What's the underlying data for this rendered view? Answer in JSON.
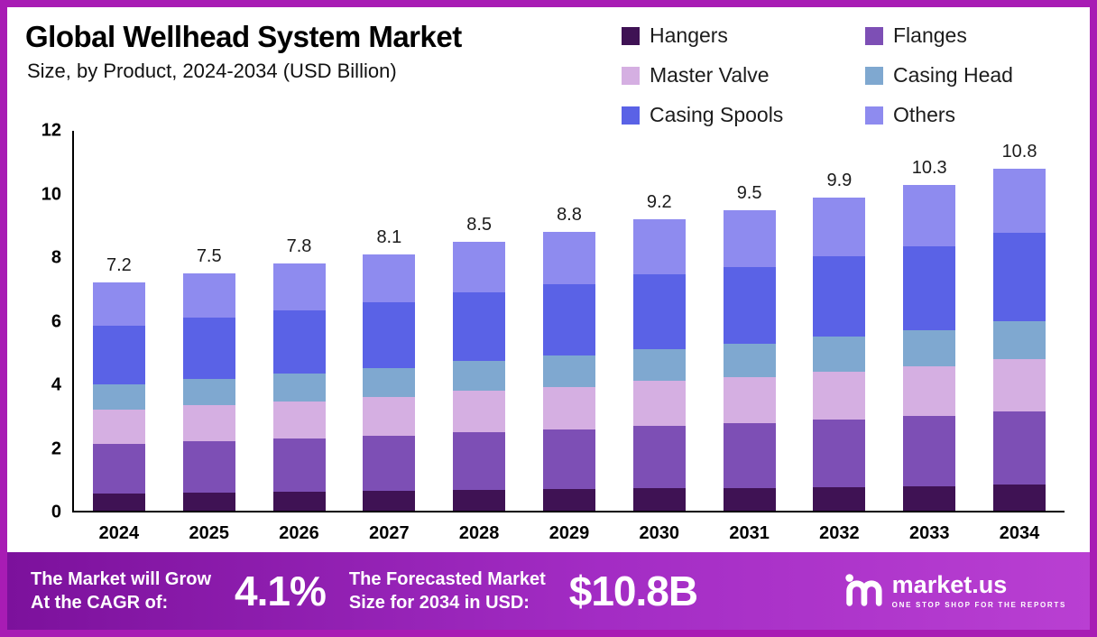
{
  "page": {
    "title": "Global Wellhead System Market",
    "subtitle": "Size, by Product, 2024-2034 (USD Billion)"
  },
  "chart_data": {
    "type": "bar",
    "stacked": true,
    "title": "Global Wellhead System Market Size, by Product, 2024-2034 (USD Billion)",
    "categories": [
      "2024",
      "2025",
      "2026",
      "2027",
      "2028",
      "2029",
      "2030",
      "2031",
      "2032",
      "2033",
      "2034"
    ],
    "totals": [
      7.2,
      7.5,
      7.8,
      8.1,
      8.5,
      8.8,
      9.2,
      9.5,
      9.9,
      10.3,
      10.8
    ],
    "series": [
      {
        "name": "Hangers",
        "color": "#3f1254",
        "values": [
          0.55,
          0.57,
          0.59,
          0.62,
          0.65,
          0.67,
          0.7,
          0.72,
          0.75,
          0.78,
          0.82
        ]
      },
      {
        "name": "Flanges",
        "color": "#7d4fb5",
        "values": [
          1.55,
          1.61,
          1.68,
          1.74,
          1.83,
          1.89,
          1.98,
          2.04,
          2.13,
          2.21,
          2.32
        ]
      },
      {
        "name": "Master Valve",
        "color": "#d5afe2",
        "values": [
          1.1,
          1.15,
          1.19,
          1.24,
          1.3,
          1.35,
          1.41,
          1.45,
          1.51,
          1.58,
          1.65
        ]
      },
      {
        "name": "Casing Head",
        "color": "#7fa8d0",
        "values": [
          0.8,
          0.83,
          0.87,
          0.9,
          0.94,
          0.98,
          1.02,
          1.05,
          1.1,
          1.14,
          1.2
        ]
      },
      {
        "name": "Casing Spools",
        "color": "#5a62e6",
        "values": [
          1.85,
          1.93,
          2.0,
          2.08,
          2.18,
          2.26,
          2.36,
          2.44,
          2.54,
          2.65,
          2.78
        ]
      },
      {
        "name": "Others",
        "color": "#8e8bef",
        "values": [
          1.35,
          1.41,
          1.47,
          1.52,
          1.6,
          1.65,
          1.73,
          1.8,
          1.87,
          1.94,
          2.03
        ]
      }
    ],
    "ylim": [
      0,
      12
    ],
    "yticks": [
      0,
      2,
      4,
      6,
      8,
      10,
      12
    ],
    "xlabel": "",
    "ylabel": "",
    "grid": false,
    "legend_position": "top-right"
  },
  "footer": {
    "cagr_label": "The Market will Grow\nAt the CAGR of:",
    "cagr_value": "4.1%",
    "forecast_label": "The Forecasted Market\nSize for 2034 in USD:",
    "forecast_value": "$10.8B",
    "brand": "market.us",
    "brand_tagline": "One Stop Shop For The Reports"
  },
  "colors": {
    "frame_border": "#a81cb4",
    "banner_gradient_left": "#7c119c",
    "banner_gradient_right": "#b93fd2",
    "axis": "#000000"
  }
}
